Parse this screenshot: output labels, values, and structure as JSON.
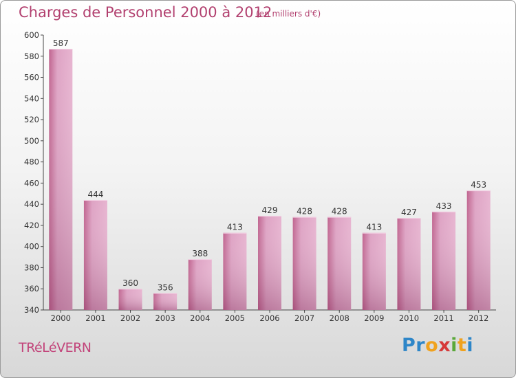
{
  "header": {
    "title": "Charges de Personnel 2000 à 2012",
    "subtitle": "(en milliers d'€)"
  },
  "footer": {
    "town": "TRéLéVERN",
    "logo": [
      {
        "ch": "P",
        "color": "#2e86c8"
      },
      {
        "ch": "r",
        "color": "#2e86c8"
      },
      {
        "ch": "o",
        "color": "#f0a21e"
      },
      {
        "ch": "x",
        "color": "#d63a3a"
      },
      {
        "ch": "i",
        "color": "#5aa83a"
      },
      {
        "ch": "t",
        "color": "#f0a21e"
      },
      {
        "ch": "i",
        "color": "#2e86c8"
      }
    ]
  },
  "chart_data": {
    "type": "bar",
    "title": "Charges de Personnel 2000 à 2012",
    "subtitle": "(en milliers d'€)",
    "categories": [
      "2000",
      "2001",
      "2002",
      "2003",
      "2004",
      "2005",
      "2006",
      "2007",
      "2008",
      "2009",
      "2010",
      "2011",
      "2012"
    ],
    "values": [
      587,
      444,
      360,
      356,
      388,
      413,
      429,
      428,
      428,
      413,
      427,
      433,
      453
    ],
    "ylim": [
      340,
      600
    ],
    "yticks": [
      340,
      360,
      380,
      400,
      420,
      440,
      460,
      480,
      500,
      520,
      540,
      560,
      580,
      600
    ],
    "grid": false,
    "bar_color": "#d98fb6"
  }
}
